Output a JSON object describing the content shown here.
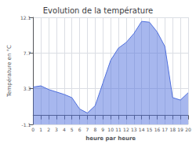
{
  "chart_data": {
    "type": "area",
    "title": "Evolution de la température",
    "xlabel": "heure par heure",
    "ylabel": "Température en °C",
    "x": [
      0,
      1,
      2,
      3,
      4,
      5,
      6,
      7,
      8,
      9,
      10,
      11,
      12,
      13,
      14,
      15,
      16,
      17,
      18,
      19,
      20
    ],
    "values": [
      3.5,
      3.65,
      3.2,
      2.9,
      2.6,
      2.2,
      0.8,
      0.3,
      1.2,
      4.0,
      6.8,
      8.3,
      9.0,
      10.1,
      11.6,
      11.5,
      10.3,
      8.5,
      2.2,
      1.9,
      2.8
    ],
    "xlim": [
      0,
      20
    ],
    "xticks": [
      0,
      1,
      2,
      3,
      4,
      5,
      6,
      7,
      8,
      9,
      10,
      11,
      12,
      13,
      14,
      15,
      16,
      17,
      18,
      19,
      20
    ],
    "ylim": [
      -1.1,
      12.1
    ],
    "yticks": [
      -1.1,
      3.3,
      7.7,
      12.1
    ],
    "grid": true
  }
}
